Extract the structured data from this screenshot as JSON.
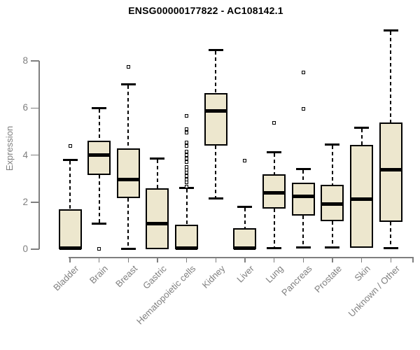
{
  "chart_data": {
    "type": "boxplot",
    "title": "ENSG00000177822 - AC108142.1",
    "ylabel": "Expression",
    "xlabel": "",
    "ylim": [
      0,
      9.4
    ],
    "yticks": [
      0,
      2,
      4,
      6,
      8
    ],
    "grid": false,
    "legend": "none",
    "categories": [
      "Bladder",
      "Brain",
      "Breast",
      "Gastric",
      "Hematopoietic cells",
      "Kidney",
      "Liver",
      "Lung",
      "Pancreas",
      "Prostate",
      "Skin",
      "Unknown / Other"
    ],
    "series": [
      {
        "name": "Bladder",
        "low": 0,
        "q1": 0,
        "median": 0.05,
        "q3": 1.7,
        "high": 3.8,
        "outliers": [
          4.4
        ]
      },
      {
        "name": "Brain",
        "low": 1.1,
        "q1": 3.15,
        "median": 4.0,
        "q3": 4.6,
        "high": 6.0,
        "outliers": [
          0.02
        ]
      },
      {
        "name": "Breast",
        "low": 0.02,
        "q1": 2.16,
        "median": 2.95,
        "q3": 4.27,
        "high": 7.0,
        "outliers": [
          7.75
        ]
      },
      {
        "name": "Gastric",
        "low": 0,
        "q1": 0,
        "median": 1.08,
        "q3": 2.58,
        "high": 3.85,
        "outliers": []
      },
      {
        "name": "Hematopoietic cells",
        "low": 0,
        "q1": 0,
        "median": 0.05,
        "q3": 1.04,
        "high": 2.6,
        "outliers": [
          2.67,
          2.84,
          2.96,
          3.1,
          3.25,
          3.38,
          3.5,
          3.7,
          3.85,
          4.0,
          4.15,
          4.4,
          4.55,
          4.94,
          5.1,
          5.68
        ]
      },
      {
        "name": "Kidney",
        "low": 2.15,
        "q1": 4.4,
        "median": 5.88,
        "q3": 6.62,
        "high": 8.45,
        "outliers": []
      },
      {
        "name": "Liver",
        "low": 0,
        "q1": 0,
        "median": 0.05,
        "q3": 0.9,
        "high": 1.8,
        "outliers": [
          3.75
        ]
      },
      {
        "name": "Lung",
        "low": 0.05,
        "q1": 1.73,
        "median": 2.4,
        "q3": 3.17,
        "high": 4.13,
        "outliers": [
          5.38
        ]
      },
      {
        "name": "Pancreas",
        "low": 0.08,
        "q1": 1.42,
        "median": 2.26,
        "q3": 2.83,
        "high": 3.4,
        "outliers": [
          5.95,
          7.5
        ]
      },
      {
        "name": "Prostate",
        "low": 0.08,
        "q1": 1.19,
        "median": 1.93,
        "q3": 2.73,
        "high": 4.45,
        "outliers": []
      },
      {
        "name": "Skin",
        "low": 0.03,
        "q1": 0.05,
        "median": 2.13,
        "q3": 4.44,
        "high": 5.17,
        "outliers": []
      },
      {
        "name": "Unknown / Other",
        "low": 0.03,
        "q1": 1.17,
        "median": 3.38,
        "q3": 5.38,
        "high": 9.3,
        "outliers": []
      }
    ]
  },
  "style": {
    "box_fill": "#EDE7CE",
    "box_border": "#000000",
    "median_color": "#000000",
    "whisker_color": "#000000",
    "axis_color": "#7f7f7f",
    "label_color": "#7f7f7f",
    "title_color": "#000000",
    "background": "#ffffff"
  }
}
